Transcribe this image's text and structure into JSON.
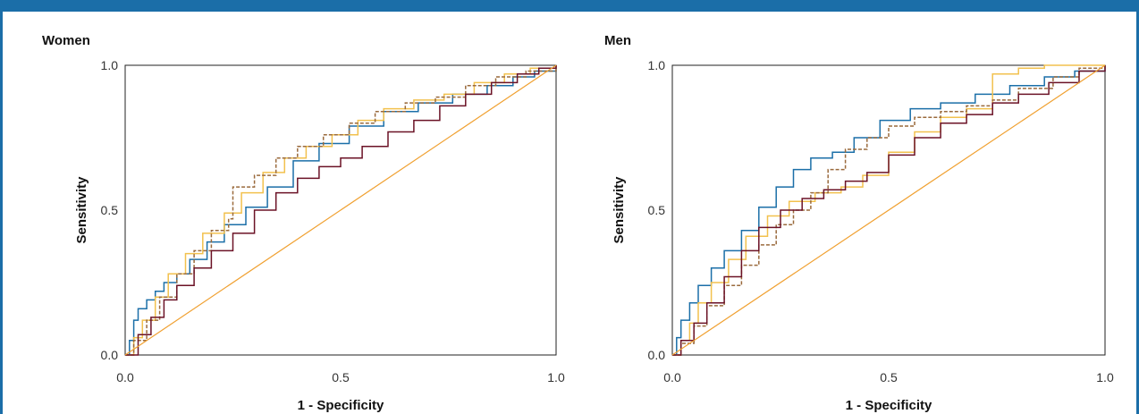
{
  "colors": {
    "frame": "#1b6ea8",
    "blue": "#1b6fa8",
    "yellow": "#f2c14e",
    "brown_dashed": "#9a6a3c",
    "maroon": "#6b1226",
    "reference": "#f0a030"
  },
  "chart_data": [
    {
      "type": "line",
      "title": "Women",
      "xlabel": "1 - Specificity",
      "ylabel": "Sensitivity",
      "xlim": [
        0,
        1
      ],
      "ylim": [
        0,
        1
      ],
      "xticks": [
        "0.0",
        "0.5",
        "1.0"
      ],
      "yticks": [
        "0.0",
        "0.5",
        "1.0"
      ],
      "grid": false,
      "series": [
        {
          "color": "#1b6fa8",
          "style": "step",
          "x": [
            0,
            0.01,
            0.02,
            0.03,
            0.05,
            0.07,
            0.09,
            0.12,
            0.15,
            0.19,
            0.23,
            0.28,
            0.33,
            0.39,
            0.45,
            0.52,
            0.6,
            0.68,
            0.76,
            0.84,
            0.9,
            0.95,
            1.0
          ],
          "y": [
            0,
            0.05,
            0.12,
            0.16,
            0.19,
            0.22,
            0.25,
            0.28,
            0.33,
            0.39,
            0.45,
            0.51,
            0.58,
            0.67,
            0.73,
            0.79,
            0.84,
            0.87,
            0.9,
            0.93,
            0.96,
            0.98,
            1.0
          ]
        },
        {
          "color": "#f2c14e",
          "style": "step",
          "x": [
            0,
            0.02,
            0.04,
            0.07,
            0.1,
            0.14,
            0.18,
            0.23,
            0.27,
            0.32,
            0.37,
            0.42,
            0.48,
            0.54,
            0.6,
            0.67,
            0.74,
            0.81,
            0.88,
            0.94,
            1.0
          ],
          "y": [
            0,
            0.06,
            0.12,
            0.2,
            0.28,
            0.35,
            0.42,
            0.49,
            0.56,
            0.63,
            0.68,
            0.72,
            0.76,
            0.81,
            0.85,
            0.88,
            0.9,
            0.94,
            0.97,
            0.99,
            1.0
          ]
        },
        {
          "color": "#9a6a3c",
          "style": "step-dashed",
          "x": [
            0,
            0.02,
            0.05,
            0.08,
            0.12,
            0.16,
            0.2,
            0.24,
            0.25,
            0.3,
            0.35,
            0.4,
            0.46,
            0.52,
            0.58,
            0.65,
            0.72,
            0.79,
            0.86,
            0.93,
            1.0
          ],
          "y": [
            0,
            0.05,
            0.12,
            0.2,
            0.28,
            0.36,
            0.43,
            0.47,
            0.58,
            0.62,
            0.68,
            0.72,
            0.76,
            0.8,
            0.84,
            0.87,
            0.89,
            0.93,
            0.96,
            0.98,
            1.0
          ]
        },
        {
          "color": "#6b1226",
          "style": "step",
          "x": [
            0,
            0.03,
            0.06,
            0.09,
            0.12,
            0.16,
            0.2,
            0.25,
            0.3,
            0.35,
            0.4,
            0.45,
            0.5,
            0.55,
            0.61,
            0.67,
            0.73,
            0.79,
            0.85,
            0.91,
            0.96,
            1.0
          ],
          "y": [
            0,
            0.07,
            0.13,
            0.19,
            0.24,
            0.3,
            0.36,
            0.42,
            0.5,
            0.56,
            0.61,
            0.65,
            0.68,
            0.72,
            0.77,
            0.81,
            0.86,
            0.9,
            0.94,
            0.97,
            0.99,
            1.0
          ]
        },
        {
          "color": "#f0a030",
          "style": "line",
          "x": [
            0,
            1
          ],
          "y": [
            0,
            1
          ]
        }
      ]
    },
    {
      "type": "line",
      "title": "Men",
      "xlabel": "1 - Specificity",
      "ylabel": "Sensitivity",
      "xlim": [
        0,
        1
      ],
      "ylim": [
        0,
        1
      ],
      "xticks": [
        "0.0",
        "0.5",
        "1.0"
      ],
      "yticks": [
        "0.0",
        "0.5",
        "1.0"
      ],
      "grid": false,
      "series": [
        {
          "color": "#1b6fa8",
          "style": "step",
          "x": [
            0,
            0.01,
            0.02,
            0.04,
            0.06,
            0.09,
            0.12,
            0.16,
            0.2,
            0.24,
            0.28,
            0.32,
            0.37,
            0.42,
            0.48,
            0.55,
            0.62,
            0.7,
            0.78,
            0.86,
            0.93,
            1.0
          ],
          "y": [
            0,
            0.06,
            0.12,
            0.18,
            0.24,
            0.3,
            0.36,
            0.43,
            0.51,
            0.58,
            0.64,
            0.68,
            0.7,
            0.75,
            0.81,
            0.85,
            0.87,
            0.9,
            0.93,
            0.96,
            0.98,
            1.0
          ]
        },
        {
          "color": "#f2c14e",
          "style": "step",
          "x": [
            0,
            0.02,
            0.04,
            0.06,
            0.09,
            0.13,
            0.17,
            0.22,
            0.27,
            0.33,
            0.39,
            0.44,
            0.5,
            0.56,
            0.62,
            0.68,
            0.74,
            0.8,
            0.86,
            0.92,
            1.0
          ],
          "y": [
            0,
            0.05,
            0.11,
            0.18,
            0.25,
            0.33,
            0.41,
            0.48,
            0.53,
            0.56,
            0.58,
            0.62,
            0.7,
            0.77,
            0.82,
            0.85,
            0.97,
            0.99,
            1.0,
            1.0,
            1.0
          ]
        },
        {
          "color": "#9a6a3c",
          "style": "step-dashed",
          "x": [
            0,
            0.02,
            0.05,
            0.08,
            0.12,
            0.16,
            0.2,
            0.24,
            0.28,
            0.32,
            0.36,
            0.4,
            0.45,
            0.5,
            0.56,
            0.62,
            0.68,
            0.74,
            0.8,
            0.88,
            0.94,
            1.0
          ],
          "y": [
            0,
            0.04,
            0.1,
            0.17,
            0.24,
            0.31,
            0.38,
            0.45,
            0.5,
            0.56,
            0.64,
            0.71,
            0.75,
            0.79,
            0.82,
            0.84,
            0.86,
            0.88,
            0.92,
            0.96,
            0.99,
            1.0
          ]
        },
        {
          "color": "#6b1226",
          "style": "step",
          "x": [
            0,
            0.02,
            0.05,
            0.08,
            0.12,
            0.16,
            0.2,
            0.25,
            0.3,
            0.35,
            0.4,
            0.45,
            0.5,
            0.56,
            0.62,
            0.68,
            0.74,
            0.8,
            0.87,
            0.94,
            1.0
          ],
          "y": [
            0,
            0.05,
            0.11,
            0.18,
            0.27,
            0.36,
            0.44,
            0.5,
            0.54,
            0.57,
            0.6,
            0.63,
            0.69,
            0.75,
            0.8,
            0.83,
            0.87,
            0.9,
            0.94,
            0.98,
            1.0
          ]
        },
        {
          "color": "#f0a030",
          "style": "line",
          "x": [
            0,
            1
          ],
          "y": [
            0,
            1
          ]
        }
      ]
    }
  ]
}
